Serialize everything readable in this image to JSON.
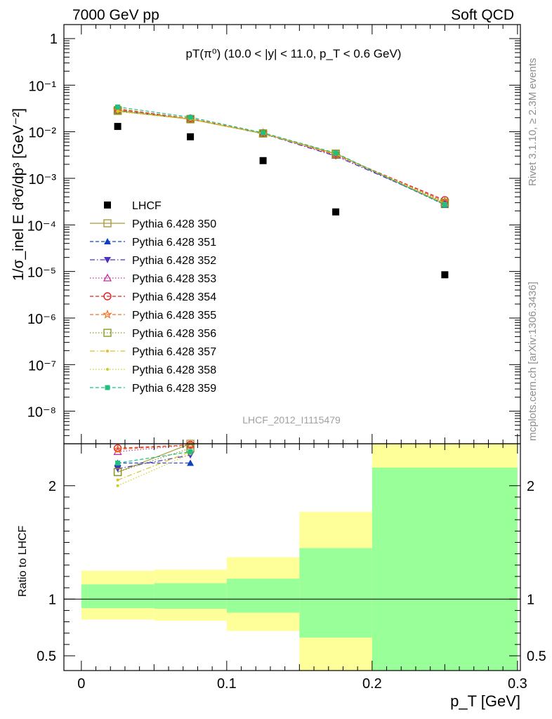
{
  "header": {
    "left": "7000 GeV pp",
    "right": "Soft QCD"
  },
  "side_labels": {
    "rivet": "Rivet 3.1.10, ≥ 2.3M events",
    "mcplots": "mcplots.cern.ch [arXiv:1306.3436]"
  },
  "watermark": "LHCF_2012_I1115479",
  "chart_data": [
    {
      "type": "scatter",
      "title": "pT(π⁰) (10.0 < |y| < 11.0, p_T < 0.6 GeV)",
      "xlabel": "p_T [GeV]",
      "ylabel": "1/σ_inel E d³σ/dp³ [GeV⁻²]",
      "xlim": [
        -0.012,
        0.302
      ],
      "ylim": [
        2e-09,
        2.0
      ],
      "yscale": "log",
      "x_ticks": [
        "0",
        "0.1",
        "0.2",
        "0.3"
      ],
      "y_tick_labels": [
        "1",
        "10⁻¹",
        "10⁻²",
        "10⁻³",
        "10⁻⁴",
        "10⁻⁵",
        "10⁻⁶",
        "10⁻⁷",
        "10⁻⁸"
      ],
      "legend_position": "left",
      "x": [
        0.025,
        0.075,
        0.125,
        0.175,
        0.25
      ],
      "series": [
        {
          "name": "LHCF",
          "color": "#000000",
          "marker": "square-filled",
          "line": "none",
          "values": [
            0.013,
            0.0078,
            0.0024,
            0.00019,
            8.5e-06
          ]
        },
        {
          "name": "Pythia 6.428 350",
          "color": "#a89a3a",
          "marker": "square-open",
          "line": "solid",
          "values": [
            0.028,
            0.0185,
            0.0092,
            0.0034,
            0.00028
          ]
        },
        {
          "name": "Pythia 6.428 351",
          "color": "#1040c0",
          "marker": "triangle-up-filled",
          "line": "dashed",
          "values": [
            0.0285,
            0.0188,
            0.0091,
            0.0033,
            0.00027
          ]
        },
        {
          "name": "Pythia 6.428 352",
          "color": "#5030c0",
          "marker": "triangle-down-filled",
          "line": "dashdot",
          "values": [
            0.0285,
            0.0188,
            0.0091,
            0.003,
            0.00029
          ]
        },
        {
          "name": "Pythia 6.428 353",
          "color": "#c030a0",
          "marker": "triangle-up-open",
          "line": "dotted",
          "values": [
            0.03,
            0.019,
            0.0093,
            0.0031,
            0.00031
          ]
        },
        {
          "name": "Pythia 6.428 354",
          "color": "#e02020",
          "marker": "circle-open",
          "line": "dashed",
          "values": [
            0.031,
            0.0192,
            0.0093,
            0.0032,
            0.00034
          ]
        },
        {
          "name": "Pythia 6.428 355",
          "color": "#f07020",
          "marker": "star-open",
          "line": "dashed",
          "values": [
            0.03,
            0.019,
            0.0093,
            0.0033,
            0.00032
          ]
        },
        {
          "name": "Pythia 6.428 356",
          "color": "#8a9a20",
          "marker": "square-open",
          "line": "dotted",
          "values": [
            0.029,
            0.0188,
            0.0092,
            0.0033,
            0.0003
          ]
        },
        {
          "name": "Pythia 6.428 357",
          "color": "#e0c020",
          "marker": "dot",
          "line": "dashdot",
          "values": [
            0.028,
            0.0186,
            0.0092,
            0.0033,
            0.00029
          ]
        },
        {
          "name": "Pythia 6.428 358",
          "color": "#c8d020",
          "marker": "dot",
          "line": "dotted",
          "values": [
            0.027,
            0.0185,
            0.0091,
            0.0033,
            0.00029
          ]
        },
        {
          "name": "Pythia 6.428 359",
          "color": "#20c080",
          "marker": "square-filled-small",
          "line": "dashed",
          "values": [
            0.034,
            0.0205,
            0.0095,
            0.0035,
            0.00027
          ]
        }
      ]
    },
    {
      "type": "scatter",
      "ylabel": "Ratio to LHCF",
      "xlabel": "p_T [GeV]",
      "xlim": [
        -0.012,
        0.302
      ],
      "ylim": [
        0.37,
        2.37
      ],
      "y_ticks": [
        "0.5",
        "1",
        "2"
      ],
      "reference_line": 1,
      "bands": [
        {
          "x_low": 0.0,
          "x_high": 0.05,
          "green": [
            0.92,
            1.13
          ],
          "yellow": [
            0.82,
            1.25
          ]
        },
        {
          "x_low": 0.05,
          "x_high": 0.1,
          "green": [
            0.915,
            1.14
          ],
          "yellow": [
            0.81,
            1.26
          ]
        },
        {
          "x_low": 0.1,
          "x_high": 0.15,
          "green": [
            0.88,
            1.18
          ],
          "yellow": [
            0.72,
            1.37
          ]
        },
        {
          "x_low": 0.15,
          "x_high": 0.2,
          "green": [
            0.66,
            1.45
          ],
          "yellow": [
            0.37,
            1.77
          ]
        },
        {
          "x_low": 0.2,
          "x_high": 0.3,
          "green": [
            0.37,
            2.16
          ],
          "yellow": [
            0.37,
            2.37
          ]
        }
      ],
      "ratio_series": [
        {
          "name": "Pythia 6.428 350",
          "color": "#a89a3a",
          "marker": "square-open",
          "line": "solid",
          "values": [
            2.12,
            2.37
          ]
        },
        {
          "name": "Pythia 6.428 351",
          "color": "#1040c0",
          "marker": "triangle-up-filled",
          "line": "dashed",
          "values": [
            2.2,
            2.2
          ]
        },
        {
          "name": "Pythia 6.428 352",
          "color": "#5030c0",
          "marker": "triangle-down-filled",
          "line": "dashdot",
          "values": [
            2.15,
            2.27
          ]
        },
        {
          "name": "Pythia 6.428 353",
          "color": "#c030a0",
          "marker": "triangle-up-open",
          "line": "dotted",
          "values": [
            2.3,
            2.36
          ]
        },
        {
          "name": "Pythia 6.428 354",
          "color": "#e02020",
          "marker": "circle-open",
          "line": "dashed",
          "values": [
            2.33,
            2.36
          ]
        },
        {
          "name": "Pythia 6.428 355",
          "color": "#f07020",
          "marker": "star-open",
          "line": "dashed",
          "values": [
            2.32,
            2.36
          ]
        },
        {
          "name": "Pythia 6.428 356",
          "color": "#8a9a20",
          "marker": "square-open",
          "line": "dotted",
          "values": [
            2.12,
            2.33
          ]
        },
        {
          "name": "Pythia 6.428 357",
          "color": "#e0c020",
          "marker": "dot",
          "line": "dashdot",
          "values": [
            2.05,
            2.3
          ]
        },
        {
          "name": "Pythia 6.428 358",
          "color": "#c8d020",
          "marker": "dot",
          "line": "dotted",
          "values": [
            2.0,
            2.28
          ]
        },
        {
          "name": "Pythia 6.428 359",
          "color": "#20c080",
          "marker": "square-filled-small",
          "line": "dashed",
          "values": [
            2.2,
            2.3
          ]
        }
      ]
    }
  ]
}
